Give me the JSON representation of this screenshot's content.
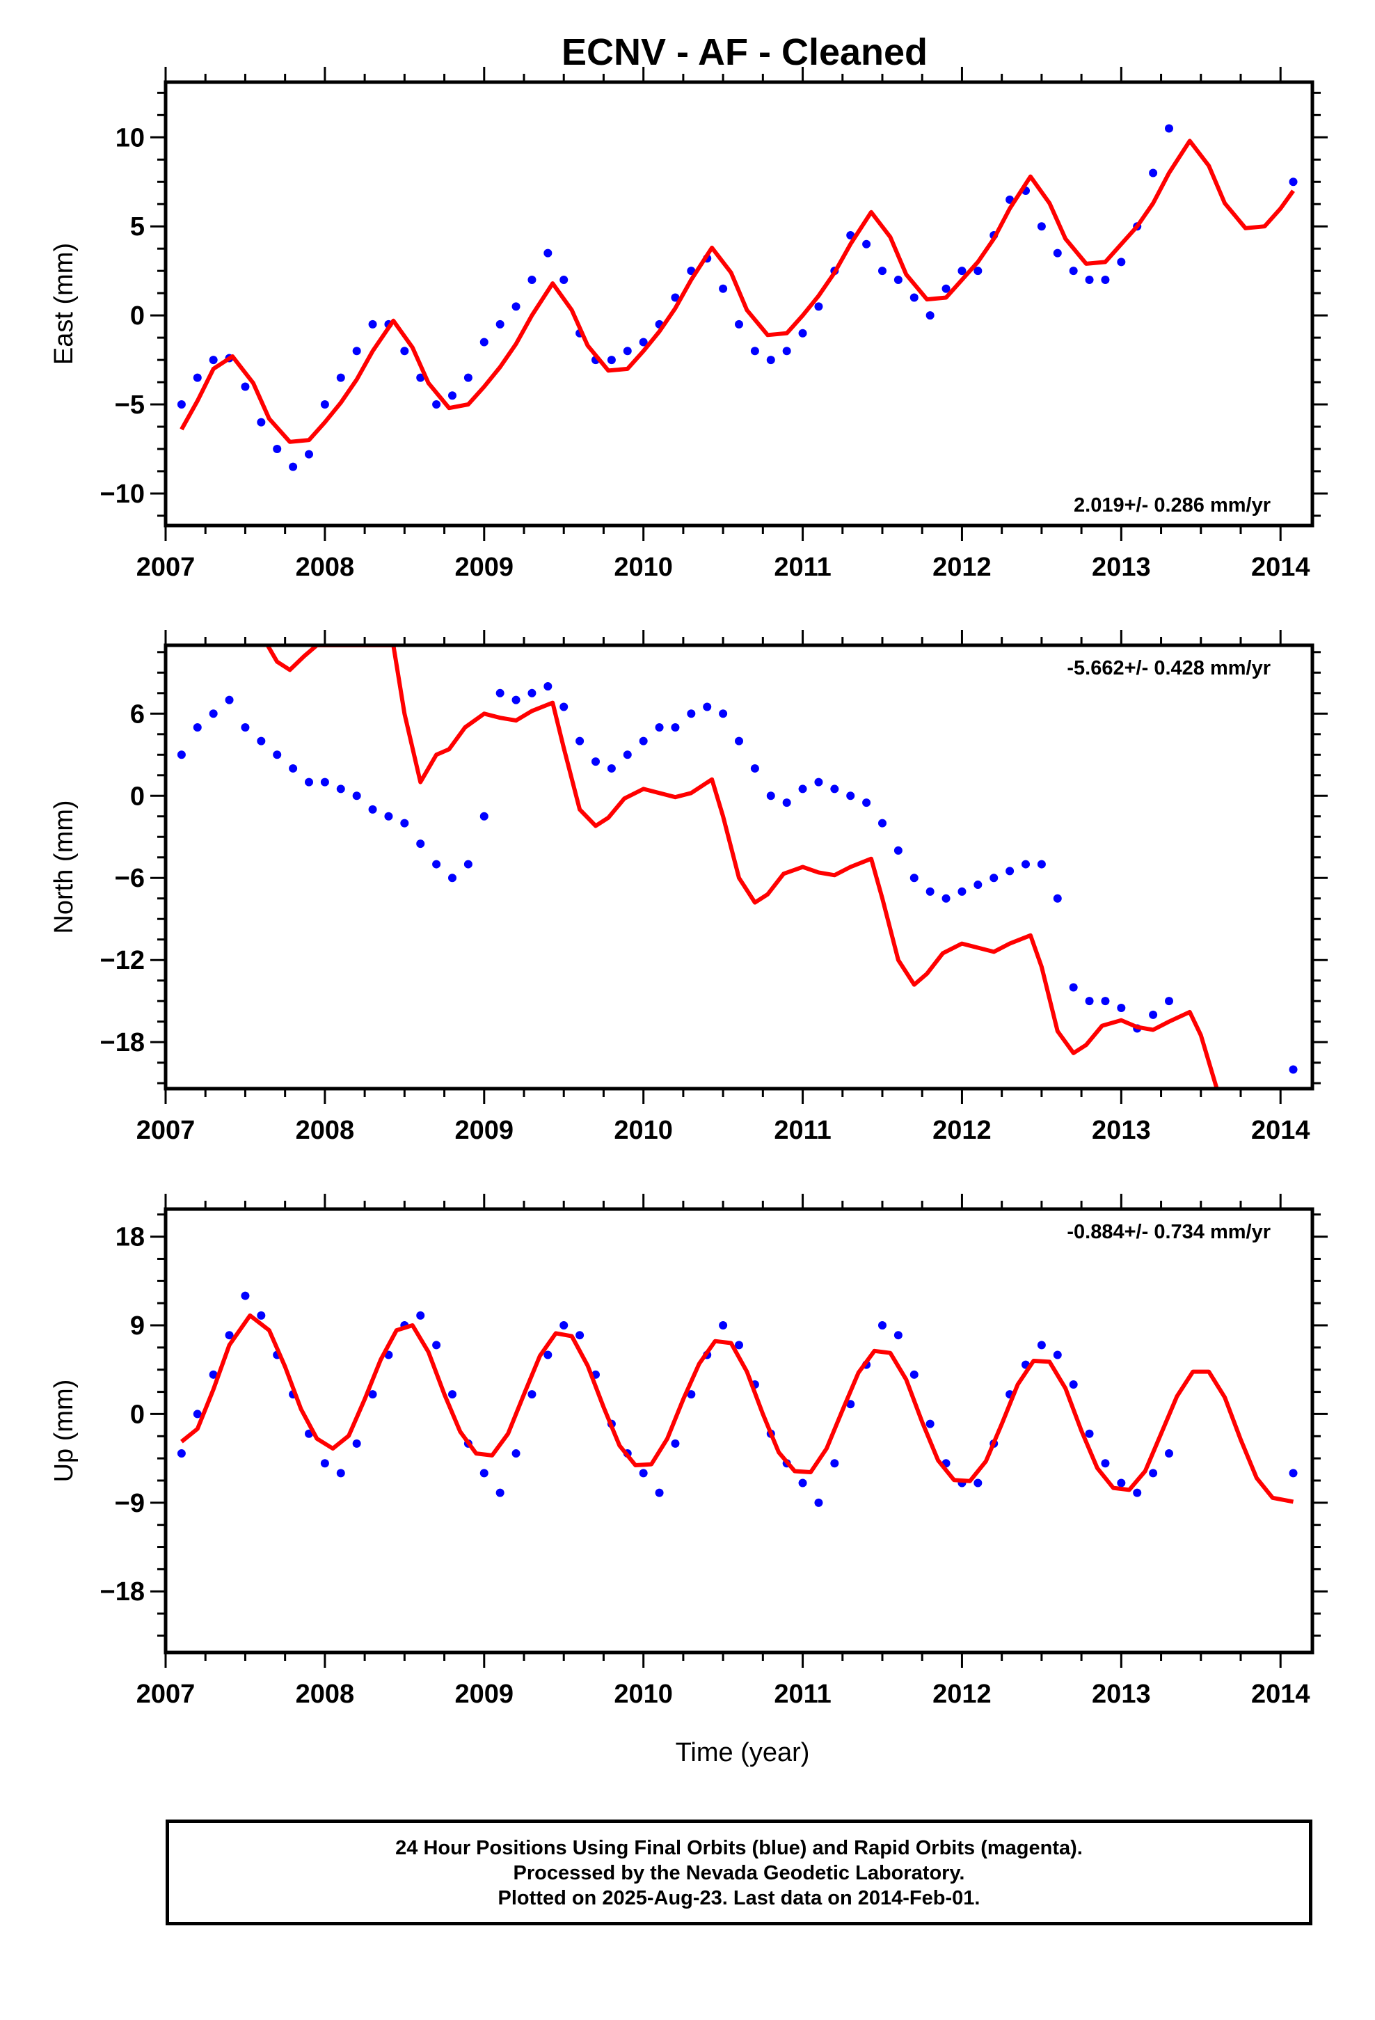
{
  "title": "ECNV  - AF - Cleaned",
  "xlabel": "Time (year)",
  "footer": {
    "line1": "24 Hour Positions Using Final Orbits (blue) and Rapid Orbits (magenta).",
    "line2": "Processed by the Nevada Geodetic Laboratory.",
    "line3": "Plotted on 2025-Aug-23. Last data on 2014-Feb-01."
  },
  "colors": {
    "data": "#0000ff",
    "model": "#ff0000",
    "frame": "#000000"
  },
  "chart_data": [
    {
      "type": "scatter",
      "title": "ECNV  - AF - Cleaned",
      "ylabel": "East (mm)",
      "xlabel": "",
      "xlim": [
        2007.0,
        2014.2
      ],
      "ylim": [
        -11.8,
        13.1
      ],
      "xticks": [
        2007,
        2008,
        2009,
        2010,
        2011,
        2012,
        2013,
        2014
      ],
      "yticks": [
        -10,
        -5,
        0,
        5,
        10
      ],
      "yticklabels": [
        "−10",
        "−5",
        "0",
        "5",
        "10"
      ],
      "rate_text": "2.019+/- 0.286 mm/yr",
      "rate_position": "bottom-right",
      "series": [
        {
          "kind": "points",
          "x": [
            2007.1,
            2007.2,
            2007.3,
            2007.4,
            2007.5,
            2007.6,
            2007.7,
            2007.8,
            2007.9,
            2008.0,
            2008.1,
            2008.2,
            2008.3,
            2008.4,
            2008.5,
            2008.6,
            2008.7,
            2008.8,
            2008.9,
            2009.0,
            2009.1,
            2009.2,
            2009.3,
            2009.4,
            2009.5,
            2009.6,
            2009.7,
            2009.8,
            2009.9,
            2010.0,
            2010.1,
            2010.2,
            2010.3,
            2010.4,
            2010.5,
            2010.6,
            2010.7,
            2010.8,
            2010.9,
            2011.0,
            2011.1,
            2011.2,
            2011.3,
            2011.4,
            2011.5,
            2011.6,
            2011.7,
            2011.8,
            2011.9,
            2012.0,
            2012.1,
            2012.2,
            2012.3,
            2012.4,
            2012.5,
            2012.6,
            2012.7,
            2012.8,
            2012.9,
            2013.0,
            2013.1,
            2013.2,
            2013.3,
            2014.08
          ],
          "y": [
            -5.0,
            -3.5,
            -2.5,
            -2.4,
            -4.0,
            -6.0,
            -7.5,
            -8.5,
            -7.8,
            -5.0,
            -3.5,
            -2.0,
            -0.5,
            -0.5,
            -2.0,
            -3.5,
            -5.0,
            -4.5,
            -3.5,
            -1.5,
            -0.5,
            0.5,
            2.0,
            3.5,
            2.0,
            -1.0,
            -2.5,
            -2.5,
            -2.0,
            -1.5,
            -0.5,
            1.0,
            2.5,
            3.2,
            1.5,
            -0.5,
            -2.0,
            -2.5,
            -2.0,
            -1.0,
            0.5,
            2.5,
            4.5,
            4.0,
            2.5,
            2.0,
            1.0,
            0.0,
            1.5,
            2.5,
            2.5,
            4.5,
            6.5,
            7.0,
            5.0,
            3.5,
            2.5,
            2.0,
            2.0,
            3.0,
            5.0,
            8.0,
            10.5,
            7.5
          ]
        },
        {
          "kind": "fit",
          "x": [
            2007.1,
            2007.2,
            2007.3,
            2007.42,
            2007.55,
            2007.65,
            2007.78,
            2007.9,
            2008.0,
            2008.1,
            2008.2,
            2008.3,
            2008.43,
            2008.55,
            2008.65,
            2008.78,
            2008.9,
            2009.0,
            2009.1,
            2009.2,
            2009.3,
            2009.43,
            2009.55,
            2009.65,
            2009.78,
            2009.9,
            2010.0,
            2010.1,
            2010.2,
            2010.3,
            2010.43,
            2010.55,
            2010.65,
            2010.78,
            2010.9,
            2011.0,
            2011.1,
            2011.2,
            2011.3,
            2011.43,
            2011.55,
            2011.65,
            2011.78,
            2011.9,
            2012.0,
            2012.1,
            2012.2,
            2012.3,
            2012.43,
            2012.55,
            2012.65,
            2012.78,
            2012.9,
            2013.0,
            2013.1,
            2013.2,
            2013.3,
            2013.43,
            2013.55,
            2013.65,
            2013.78,
            2013.9,
            2014.0,
            2014.08
          ],
          "y": [
            -6.4,
            -4.8,
            -3.0,
            -2.3,
            -3.8,
            -5.8,
            -7.1,
            -7.0,
            -6.0,
            -4.9,
            -3.6,
            -2.0,
            -0.3,
            -1.8,
            -3.8,
            -5.2,
            -5.0,
            -4.0,
            -2.9,
            -1.6,
            0.0,
            1.8,
            0.3,
            -1.7,
            -3.1,
            -3.0,
            -2.0,
            -0.9,
            0.4,
            2.0,
            3.8,
            2.4,
            0.3,
            -1.1,
            -1.0,
            0.0,
            1.1,
            2.4,
            4.0,
            5.8,
            4.4,
            2.3,
            0.9,
            1.0,
            2.0,
            3.0,
            4.3,
            6.0,
            7.8,
            6.3,
            4.3,
            2.9,
            3.0,
            4.0,
            5.0,
            6.3,
            8.0,
            9.8,
            8.4,
            6.3,
            4.9,
            5.0,
            6.0,
            7.0
          ]
        }
      ]
    },
    {
      "type": "scatter",
      "ylabel": "North (mm)",
      "xlabel": "",
      "xlim": [
        2007.0,
        2014.2
      ],
      "ylim": [
        -21.4,
        11.0
      ],
      "xticks": [
        2007,
        2008,
        2009,
        2010,
        2011,
        2012,
        2013,
        2014
      ],
      "yticks": [
        -18,
        -12,
        -6,
        0,
        6
      ],
      "yticklabels": [
        "−18",
        "−12",
        "−6",
        "0",
        "6"
      ],
      "rate_text": "-5.662+/- 0.428 mm/yr",
      "rate_position": "top-right",
      "series": [
        {
          "kind": "points",
          "x": [
            2007.1,
            2007.2,
            2007.3,
            2007.4,
            2007.5,
            2007.6,
            2007.7,
            2007.8,
            2007.9,
            2008.0,
            2008.1,
            2008.2,
            2008.3,
            2008.4,
            2008.5,
            2008.6,
            2008.7,
            2008.8,
            2008.9,
            2009.0,
            2009.1,
            2009.2,
            2009.3,
            2009.4,
            2009.5,
            2009.6,
            2009.7,
            2009.8,
            2009.9,
            2010.0,
            2010.1,
            2010.2,
            2010.3,
            2010.4,
            2010.5,
            2010.6,
            2010.7,
            2010.8,
            2010.9,
            2011.0,
            2011.1,
            2011.2,
            2011.3,
            2011.4,
            2011.5,
            2011.6,
            2011.7,
            2011.8,
            2011.9,
            2012.0,
            2012.1,
            2012.2,
            2012.3,
            2012.4,
            2012.5,
            2012.6,
            2012.7,
            2012.8,
            2012.9,
            2013.0,
            2013.1,
            2013.2,
            2013.3,
            2014.08
          ],
          "y": [
            3.0,
            5.0,
            6.0,
            7.0,
            5.0,
            4.0,
            3.0,
            2.0,
            1.0,
            1.0,
            0.5,
            0.0,
            -1.0,
            -1.5,
            -2.0,
            -3.5,
            -5.0,
            -6.0,
            -5.0,
            -1.5,
            7.5,
            7.0,
            7.5,
            8.0,
            6.5,
            4.0,
            2.5,
            2.0,
            3.0,
            4.0,
            5.0,
            5.0,
            6.0,
            6.5,
            6.0,
            4.0,
            2.0,
            0.0,
            -0.5,
            0.5,
            1.0,
            0.5,
            0.0,
            -0.5,
            -2.0,
            -4.0,
            -6.0,
            -7.0,
            -7.5,
            -7.0,
            -6.5,
            -6.0,
            -5.5,
            -5.0,
            -5.0,
            -7.5,
            -14.0,
            -15.0,
            -15.0,
            -15.5,
            -17.0,
            -16.0,
            -15.0,
            -20.0
          ]
        },
        {
          "kind": "fit",
          "x": [
            2007.64,
            2007.7,
            2007.78,
            2007.87,
            2007.95,
            2008.2,
            2008.43,
            2008.5,
            2008.6,
            2008.7,
            2008.78,
            2008.88,
            2009.0,
            2009.1,
            2009.2,
            2009.3,
            2009.43,
            2009.5,
            2009.6,
            2009.7,
            2009.78,
            2009.88,
            2010.0,
            2010.1,
            2010.2,
            2010.3,
            2010.43,
            2010.5,
            2010.6,
            2010.7,
            2010.78,
            2010.88,
            2011.0,
            2011.1,
            2011.2,
            2011.3,
            2011.43,
            2011.5,
            2011.6,
            2011.7,
            2011.78,
            2011.88,
            2012.0,
            2012.1,
            2012.2,
            2012.3,
            2012.43,
            2012.5,
            2012.6,
            2012.7,
            2012.78,
            2012.88,
            2013.0,
            2013.1,
            2013.2,
            2013.3,
            2013.43,
            2013.5,
            2013.6
          ],
          "y": [
            11.0,
            9.8,
            9.2,
            10.2,
            11.0,
            11.0,
            11.0,
            6.0,
            1.0,
            3.0,
            3.4,
            5.0,
            6.0,
            5.7,
            5.5,
            6.2,
            6.8,
            3.5,
            -1.0,
            -2.2,
            -1.6,
            -0.2,
            0.5,
            0.2,
            -0.1,
            0.2,
            1.2,
            -1.5,
            -6.0,
            -7.8,
            -7.2,
            -5.7,
            -5.2,
            -5.6,
            -5.8,
            -5.2,
            -4.6,
            -7.5,
            -12.0,
            -13.8,
            -13.0,
            -11.5,
            -10.8,
            -11.1,
            -11.4,
            -10.8,
            -10.2,
            -12.5,
            -17.2,
            -18.8,
            -18.2,
            -16.8,
            -16.4,
            -16.9,
            -17.1,
            -16.5,
            -15.8,
            -17.5,
            -21.4
          ]
        }
      ]
    },
    {
      "type": "scatter",
      "ylabel": "Up (mm)",
      "xlabel": "Time (year)",
      "xlim": [
        2007.0,
        2014.2
      ],
      "ylim": [
        -24.2,
        20.8
      ],
      "xticks": [
        2007,
        2008,
        2009,
        2010,
        2011,
        2012,
        2013,
        2014
      ],
      "yticks": [
        -18,
        -9,
        0,
        9,
        18
      ],
      "yticklabels": [
        "−18",
        "−9",
        "0",
        "9",
        "18"
      ],
      "rate_text": "-0.884+/- 0.734 mm/yr",
      "rate_position": "top-right",
      "series": [
        {
          "kind": "points",
          "x": [
            2007.1,
            2007.2,
            2007.3,
            2007.4,
            2007.5,
            2007.6,
            2007.7,
            2007.8,
            2007.9,
            2008.0,
            2008.1,
            2008.2,
            2008.3,
            2008.4,
            2008.5,
            2008.6,
            2008.7,
            2008.8,
            2008.9,
            2009.0,
            2009.1,
            2009.2,
            2009.3,
            2009.4,
            2009.5,
            2009.6,
            2009.7,
            2009.8,
            2009.9,
            2010.0,
            2010.1,
            2010.2,
            2010.3,
            2010.4,
            2010.5,
            2010.6,
            2010.7,
            2010.8,
            2010.9,
            2011.0,
            2011.1,
            2011.2,
            2011.3,
            2011.4,
            2011.5,
            2011.6,
            2011.7,
            2011.8,
            2011.9,
            2012.0,
            2012.1,
            2012.2,
            2012.3,
            2012.4,
            2012.5,
            2012.6,
            2012.7,
            2012.8,
            2012.9,
            2013.0,
            2013.1,
            2013.2,
            2013.3,
            2014.08
          ],
          "y": [
            -4.0,
            0.0,
            4.0,
            8.0,
            12.0,
            10.0,
            6.0,
            2.0,
            -2.0,
            -5.0,
            -6.0,
            -3.0,
            2.0,
            6.0,
            9.0,
            10.0,
            7.0,
            2.0,
            -3.0,
            -6.0,
            -8.0,
            -4.0,
            2.0,
            6.0,
            9.0,
            8.0,
            4.0,
            -1.0,
            -4.0,
            -6.0,
            -8.0,
            -3.0,
            2.0,
            6.0,
            9.0,
            7.0,
            3.0,
            -2.0,
            -5.0,
            -7.0,
            -9.0,
            -5.0,
            1.0,
            5.0,
            9.0,
            8.0,
            4.0,
            -1.0,
            -5.0,
            -7.0,
            -7.0,
            -3.0,
            2.0,
            5.0,
            7.0,
            6.0,
            3.0,
            -2.0,
            -5.0,
            -7.0,
            -8.0,
            -6.0,
            -4.0,
            -6.0
          ]
        },
        {
          "kind": "fit",
          "x": [
            2007.1,
            2007.2,
            2007.3,
            2007.4,
            2007.53,
            2007.65,
            2007.75,
            2007.85,
            2007.95,
            2008.05,
            2008.15,
            2008.25,
            2008.35,
            2008.45,
            2008.55,
            2008.65,
            2008.75,
            2008.85,
            2008.95,
            2009.05,
            2009.15,
            2009.25,
            2009.35,
            2009.45,
            2009.55,
            2009.65,
            2009.75,
            2009.85,
            2009.95,
            2010.05,
            2010.15,
            2010.25,
            2010.35,
            2010.45,
            2010.55,
            2010.65,
            2010.75,
            2010.85,
            2010.95,
            2011.05,
            2011.15,
            2011.25,
            2011.35,
            2011.45,
            2011.55,
            2011.65,
            2011.75,
            2011.85,
            2011.95,
            2012.05,
            2012.15,
            2012.25,
            2012.35,
            2012.45,
            2012.55,
            2012.65,
            2012.75,
            2012.85,
            2012.95,
            2013.05,
            2013.15,
            2013.25,
            2013.35,
            2013.45,
            2013.55,
            2013.65,
            2013.75,
            2013.85,
            2013.95,
            2014.08
          ],
          "y": [
            -2.8,
            -1.5,
            2.5,
            7.0,
            10.0,
            8.5,
            4.8,
            0.5,
            -2.5,
            -3.5,
            -2.2,
            1.5,
            5.5,
            8.5,
            9.0,
            6.3,
            2.0,
            -1.8,
            -4.0,
            -4.2,
            -2.0,
            2.0,
            5.9,
            8.2,
            7.9,
            4.9,
            0.7,
            -3.2,
            -5.2,
            -5.1,
            -2.5,
            1.5,
            5.1,
            7.4,
            7.2,
            4.3,
            0.0,
            -3.9,
            -5.8,
            -5.9,
            -3.5,
            0.4,
            4.2,
            6.4,
            6.2,
            3.5,
            -0.8,
            -4.7,
            -6.7,
            -6.8,
            -4.8,
            -1.0,
            3.0,
            5.4,
            5.3,
            2.6,
            -1.7,
            -5.5,
            -7.5,
            -7.7,
            -5.8,
            -2.0,
            1.8,
            4.3,
            4.3,
            1.7,
            -2.6,
            -6.5,
            -8.5,
            -8.9
          ]
        }
      ]
    }
  ]
}
